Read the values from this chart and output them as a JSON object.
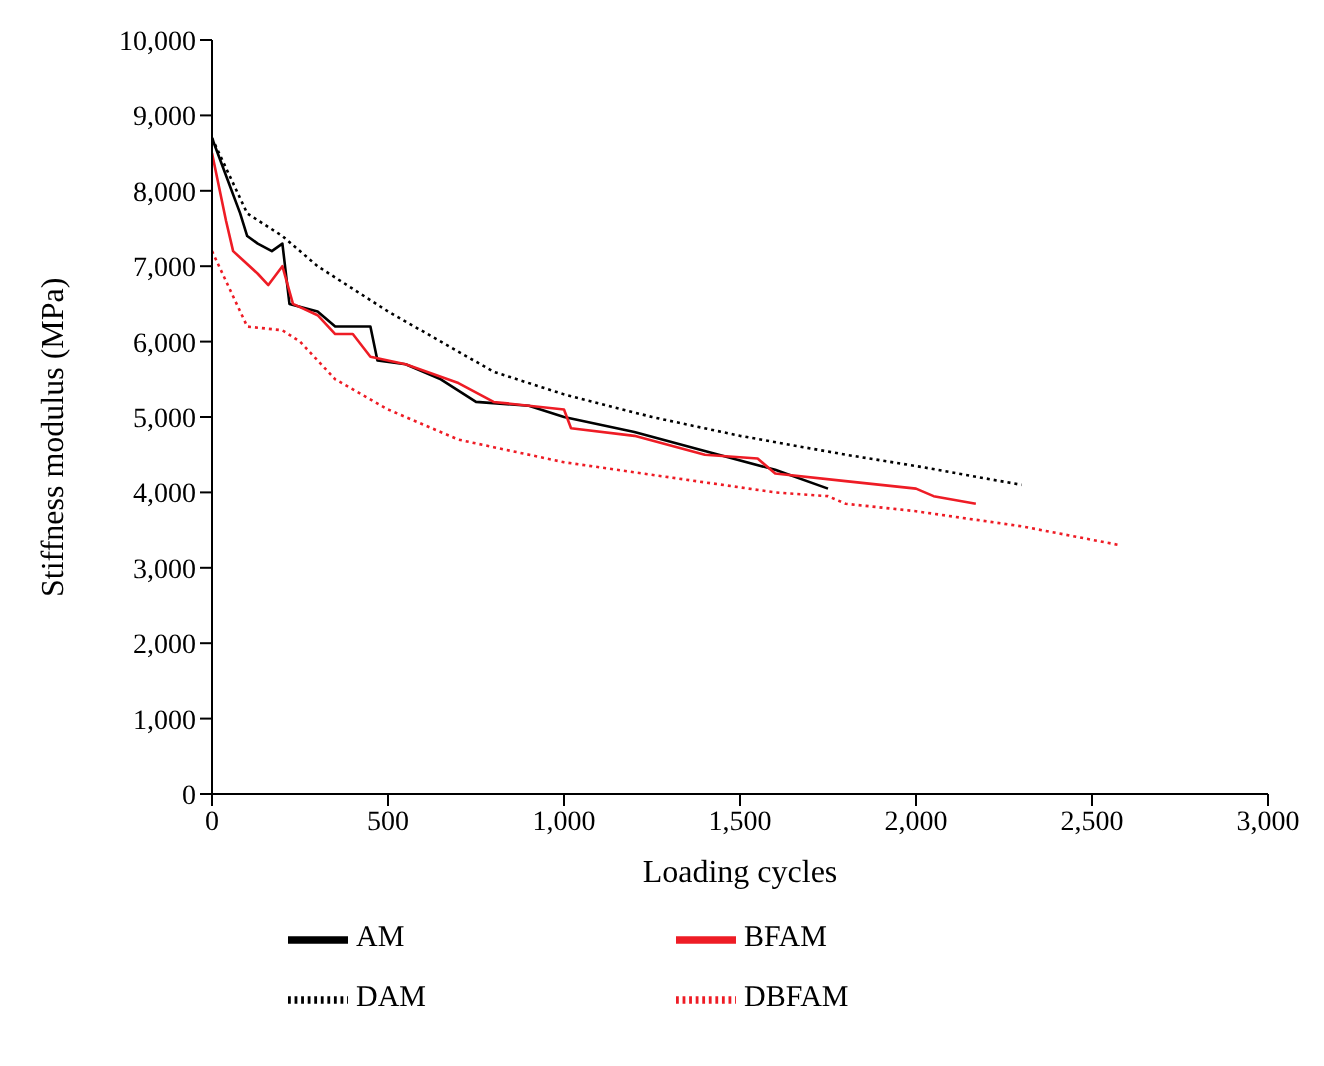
{
  "chart_data": {
    "type": "line",
    "xlabel": "Loading cycles",
    "ylabel": "Stiffness modulus (MPa)",
    "xlim": [
      0,
      3000
    ],
    "xticks": [
      {
        "value": 0,
        "label": "0"
      },
      {
        "value": 500,
        "label": "500"
      },
      {
        "value": 1000,
        "label": "1,000"
      },
      {
        "value": 1500,
        "label": "1,500"
      },
      {
        "value": 2000,
        "label": "2,000"
      },
      {
        "value": 2500,
        "label": "2,500"
      },
      {
        "value": 3000,
        "label": "3,000"
      }
    ],
    "ylim": [
      0,
      10000
    ],
    "yticks": [
      {
        "value": 0,
        "label": "0"
      },
      {
        "value": 1000,
        "label": "1,000"
      },
      {
        "value": 2000,
        "label": "2,000"
      },
      {
        "value": 3000,
        "label": "3,000"
      },
      {
        "value": 4000,
        "label": "4,000"
      },
      {
        "value": 5000,
        "label": "5,000"
      },
      {
        "value": 6000,
        "label": "6,000"
      },
      {
        "value": 7000,
        "label": "7,000"
      },
      {
        "value": 8000,
        "label": "8,000"
      },
      {
        "value": 9000,
        "label": "9,000"
      },
      {
        "value": 10000,
        "label": "10,000"
      }
    ],
    "grid": false,
    "legend": "bottom",
    "marker": "none",
    "series": [
      {
        "name": "AM",
        "color": "#000000",
        "line_style": "solid",
        "x": [
          0,
          40,
          80,
          100,
          130,
          170,
          200,
          220,
          300,
          350,
          450,
          470,
          550,
          650,
          750,
          900,
          1000,
          1200,
          1400,
          1600,
          1750
        ],
        "values": [
          8700,
          8200,
          7700,
          7400,
          7300,
          7200,
          7300,
          6500,
          6400,
          6200,
          6200,
          5750,
          5700,
          5500,
          5200,
          5150,
          5000,
          4800,
          4550,
          4300,
          4050
        ]
      },
      {
        "name": "BFAM",
        "color": "#ee1c25",
        "line_style": "solid",
        "x": [
          0,
          40,
          60,
          130,
          160,
          200,
          230,
          300,
          350,
          400,
          450,
          550,
          700,
          800,
          1000,
          1020,
          1200,
          1400,
          1550,
          1600,
          1800,
          2000,
          2050,
          2170
        ],
        "values": [
          8500,
          7600,
          7200,
          6900,
          6750,
          7000,
          6500,
          6350,
          6100,
          6100,
          5800,
          5700,
          5450,
          5200,
          5100,
          4850,
          4750,
          4500,
          4450,
          4250,
          4150,
          4050,
          3950,
          3850
        ]
      },
      {
        "name": "DAM",
        "color": "#000000",
        "line_style": "dotted",
        "x": [
          0,
          100,
          200,
          300,
          500,
          800,
          1000,
          1250,
          1500,
          1800,
          2000,
          2300
        ],
        "values": [
          8700,
          7700,
          7400,
          7000,
          6400,
          5600,
          5300,
          5000,
          4750,
          4500,
          4350,
          4100
        ]
      },
      {
        "name": "DBFAM",
        "color": "#ee1c25",
        "line_style": "dotted",
        "x": [
          0,
          100,
          200,
          250,
          350,
          500,
          700,
          800,
          1000,
          1300,
          1600,
          1750,
          1800,
          2000,
          2300,
          2580
        ],
        "values": [
          7200,
          6200,
          6150,
          6000,
          5500,
          5100,
          4700,
          4600,
          4400,
          4200,
          4000,
          3950,
          3850,
          3750,
          3550,
          3300
        ]
      }
    ]
  }
}
